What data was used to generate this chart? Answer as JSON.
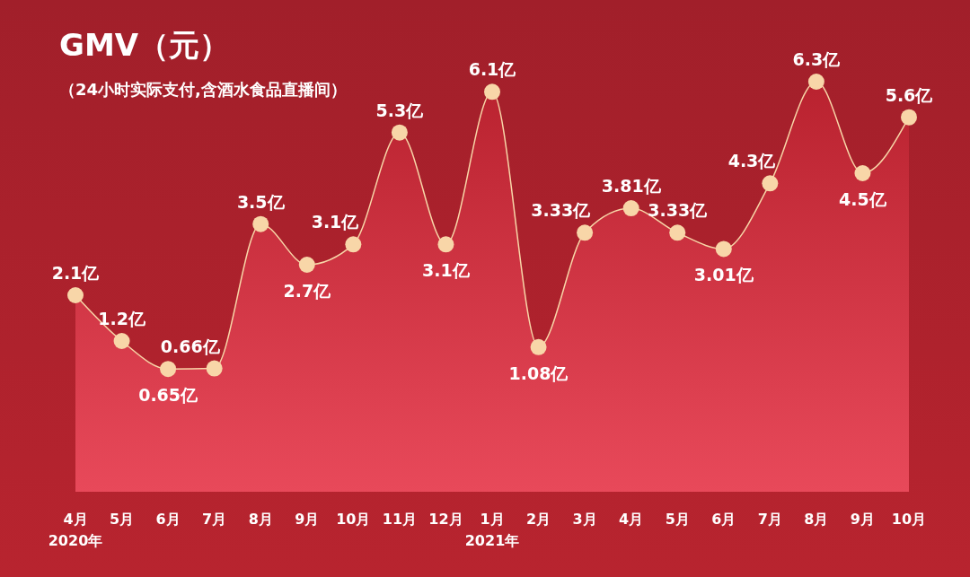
{
  "chart_data": {
    "type": "area",
    "title": "GMV（元）",
    "subtitle": "（24小时实际支付,含酒水食品直播间）",
    "categories": [
      "4月\n2020年",
      "5月",
      "6月",
      "7月",
      "8月",
      "9月",
      "10月",
      "11月",
      "12月",
      "1月\n2021年",
      "2月",
      "3月",
      "4月",
      "5月",
      "6月",
      "7月",
      "8月",
      "9月",
      "10月"
    ],
    "values": [
      2.1,
      1.2,
      0.65,
      0.66,
      3.5,
      2.7,
      3.1,
      5.3,
      3.1,
      6.1,
      1.08,
      3.33,
      3.81,
      3.33,
      3.01,
      4.3,
      6.3,
      4.5,
      5.6
    ],
    "value_labels": [
      "2.1亿",
      "1.2亿",
      "0.65亿",
      "0.66亿",
      "3.5亿",
      "2.7亿",
      "3.1亿",
      "5.3亿",
      "3.1亿",
      "6.1亿",
      "1.08亿",
      "3.33亿",
      "3.81亿",
      "3.33亿",
      "3.01亿",
      "4.3亿",
      "6.3亿",
      "4.5亿",
      "5.6亿"
    ],
    "color": "#f8d6a8",
    "marker": "circle"
  }
}
